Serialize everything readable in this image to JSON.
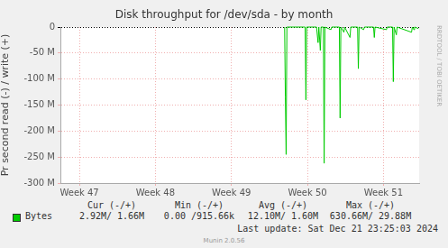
{
  "chart_data": {
    "type": "line",
    "title": "Disk throughput for /dev/sda - by month",
    "y_label": "Pr second read (-) / write (+)",
    "x": [
      49.7,
      49.71,
      49.72,
      49.73,
      49.97,
      49.98,
      49.99,
      50.12,
      50.14,
      50.15,
      50.17,
      50.18,
      50.21,
      50.22,
      50.23,
      50.31,
      50.32,
      50.42,
      50.43,
      50.44,
      50.48,
      50.49,
      50.56,
      50.57,
      50.66,
      50.67,
      50.68,
      50.74,
      50.75,
      50.87,
      50.88,
      50.89,
      51.04,
      51.05,
      51.12,
      51.13,
      51.14,
      51.17,
      51.18,
      51.37,
      51.38,
      51.4,
      51.41,
      51.46
    ],
    "series": [
      {
        "name": "Bytes",
        "color": "#00cc00",
        "values": [
          0,
          -135000000,
          -245000000,
          0,
          0,
          -140000000,
          0,
          0,
          -30000000,
          0,
          -45000000,
          0,
          0,
          -262000000,
          0,
          -5000000,
          0,
          0,
          -175000000,
          0,
          -10000000,
          0,
          -20000000,
          0,
          0,
          -80000000,
          0,
          -5000000,
          0,
          0,
          -20000000,
          0,
          -5000000,
          0,
          0,
          -105000000,
          0,
          -15000000,
          0,
          -10000000,
          0,
          -5000000,
          0,
          -2920000
        ]
      }
    ],
    "xlim": [
      46.75,
      51.47
    ],
    "xticks": [
      {
        "value": 47,
        "label": "Week 47"
      },
      {
        "value": 48,
        "label": "Week 48"
      },
      {
        "value": 49,
        "label": "Week 49"
      },
      {
        "value": 50,
        "label": "Week 50"
      },
      {
        "value": 51,
        "label": "Week 51"
      }
    ],
    "ylim": [
      -300000000,
      0
    ],
    "yticks": [
      0,
      {
        "value": -50000000,
        "label": "-50 M"
      },
      {
        "value": -100000000,
        "label": "-100 M"
      },
      {
        "value": -150000000,
        "label": "-150 M"
      },
      {
        "value": -200000000,
        "label": "-200 M"
      },
      {
        "value": -250000000,
        "label": "-250 M"
      },
      {
        "value": -300000000,
        "label": "-300 M"
      }
    ],
    "grid": true,
    "legend": "bottom",
    "stats": {
      "columns": [
        "Cur (-/+)",
        "Min (-/+)",
        "Avg (-/+)",
        "Max (-/+)"
      ],
      "rows": [
        {
          "name": "Bytes",
          "cells": [
            "2.92M/ 1.66M",
            "0.00 /915.66k",
            "12.10M/ 1.60M",
            "630.66M/ 29.88M"
          ]
        }
      ]
    },
    "footer": "Last update: Sat Dec 21 23:25:03 2024",
    "credit": "Munin 2.0.56",
    "watermark": "RRDTOOL / TOBI OETIKER"
  }
}
